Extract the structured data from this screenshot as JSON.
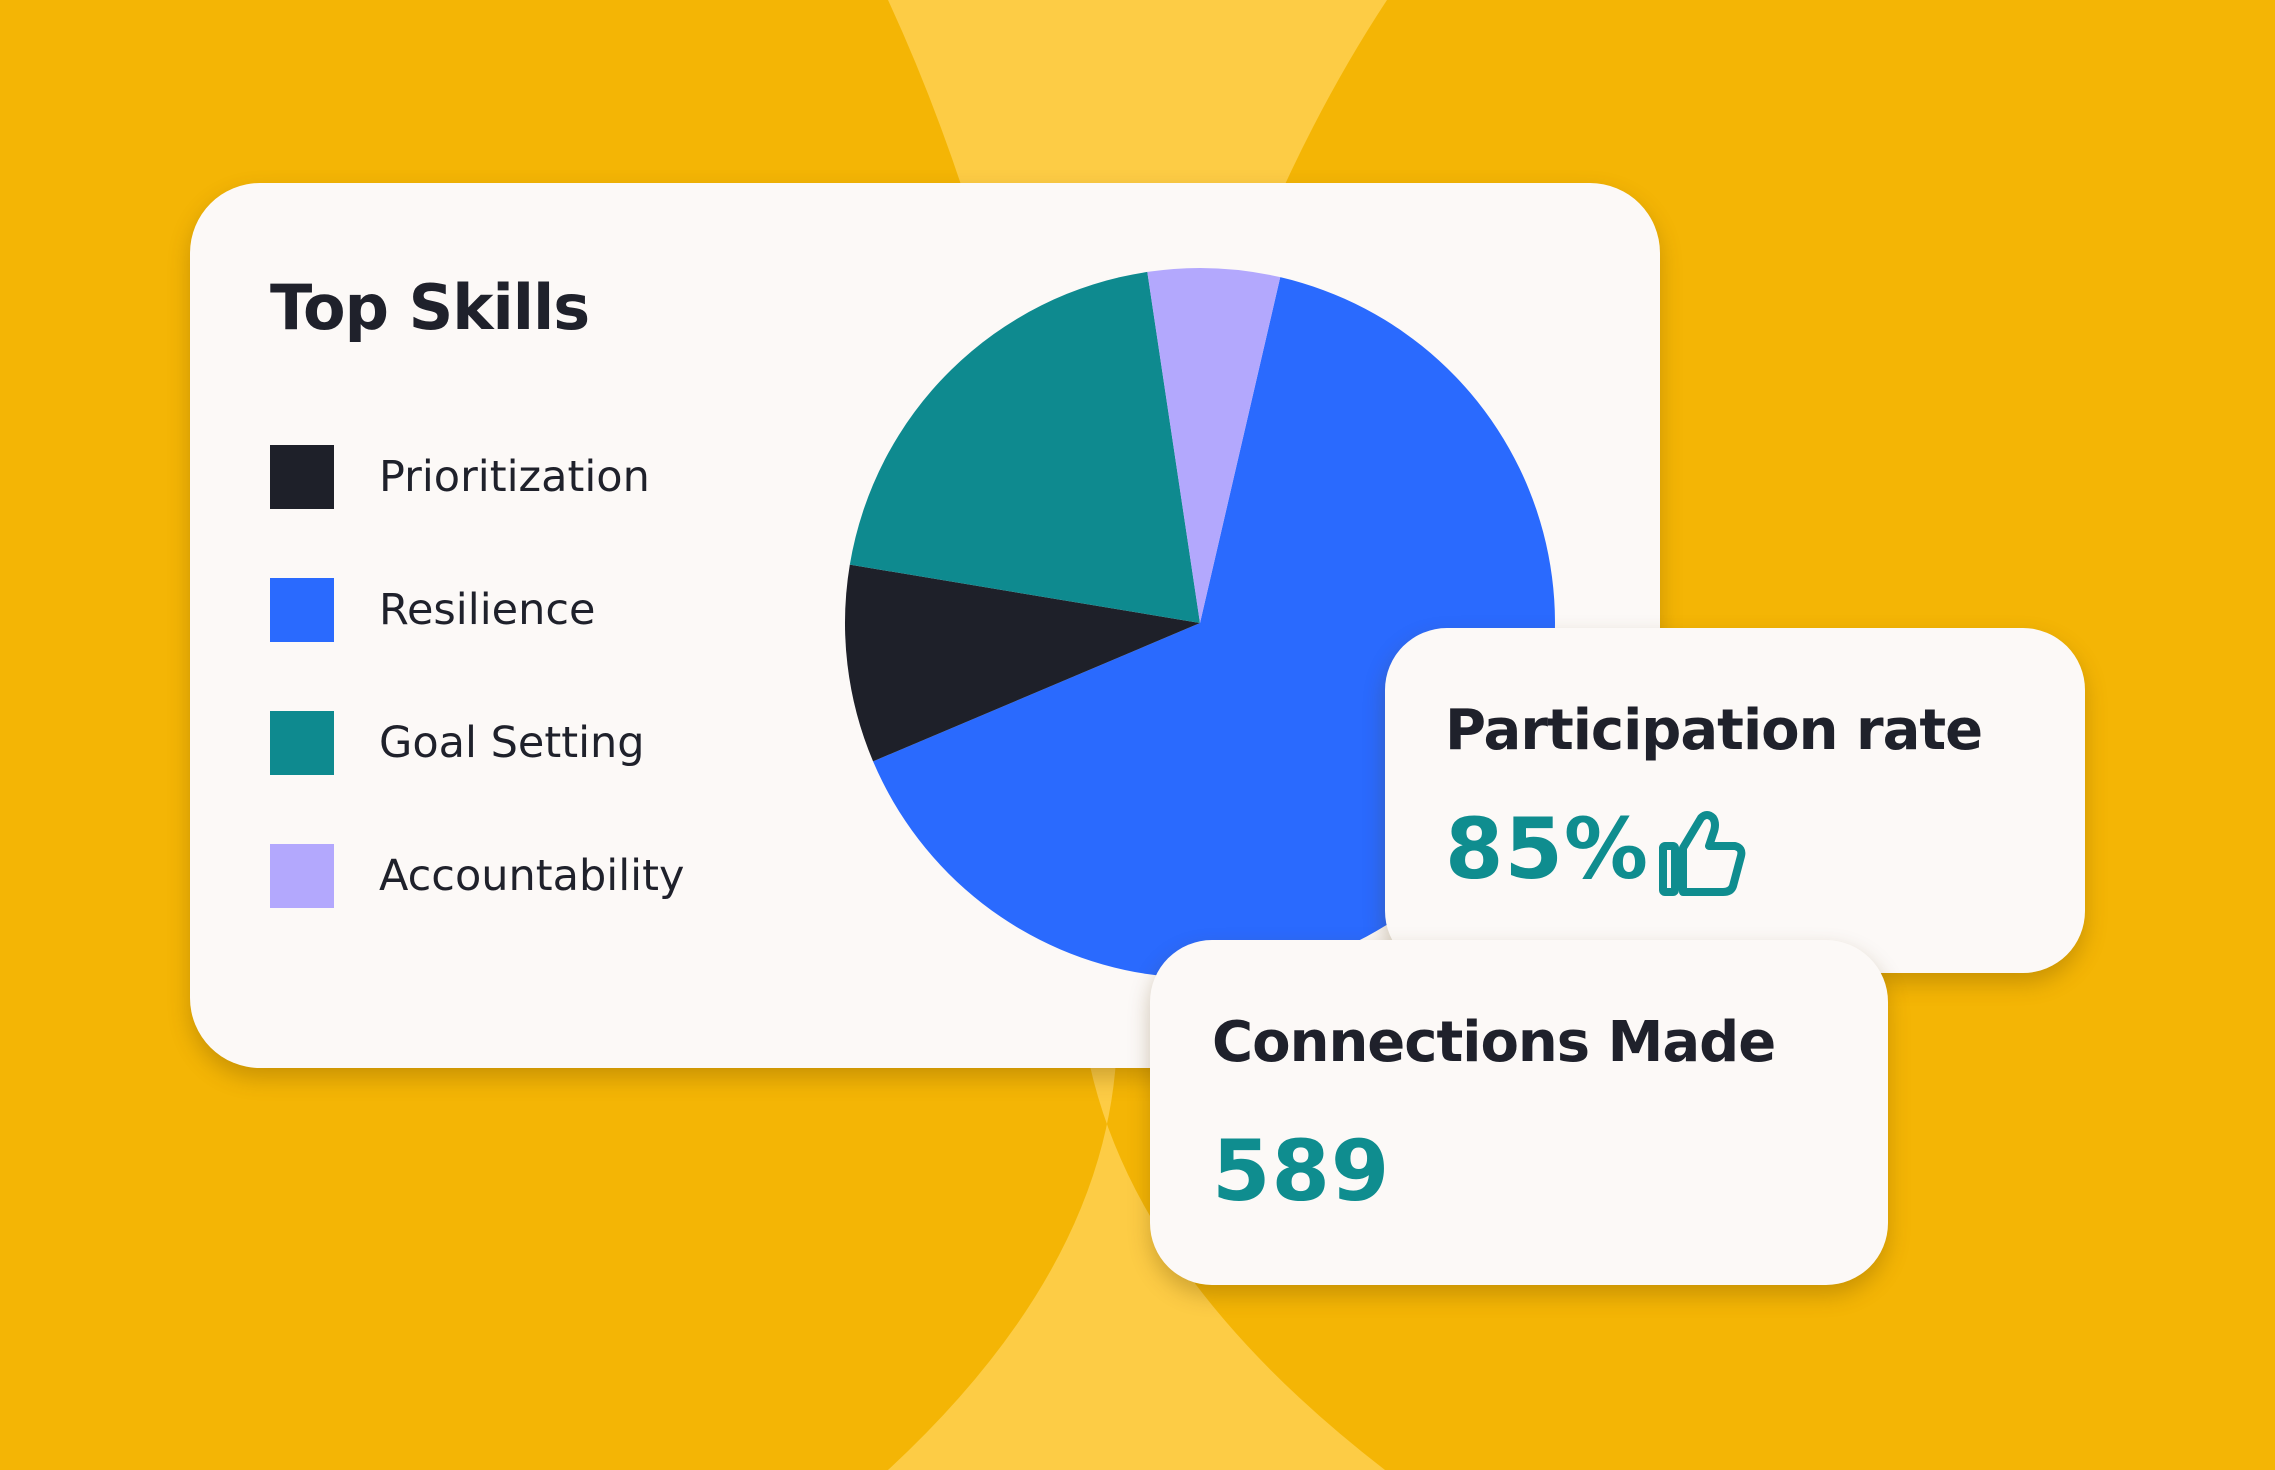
{
  "colors": {
    "background": "#f4b505",
    "background_band": "#fdcc45",
    "card": "#fcf9f7",
    "accent_teal": "#0f8d8f"
  },
  "skills_card": {
    "title": "Top Skills"
  },
  "participation": {
    "title": "Participation rate",
    "value": "85%",
    "icon": "thumbs-up-icon"
  },
  "connections": {
    "title": "Connections Made",
    "value": "589"
  },
  "chart_data": {
    "type": "pie",
    "title": "Top Skills",
    "legend_position": "left",
    "slices": [
      {
        "label": "Prioritization",
        "value": 9,
        "color": "#1e2029"
      },
      {
        "label": "Resilience",
        "value": 65,
        "color": "#2a6afe"
      },
      {
        "label": "Goal Setting",
        "value": 20,
        "color": "#0e8a8f"
      },
      {
        "label": "Accountability",
        "value": 6,
        "color": "#b3a8fd"
      }
    ],
    "draw_order": [
      1,
      0,
      2,
      3
    ]
  }
}
